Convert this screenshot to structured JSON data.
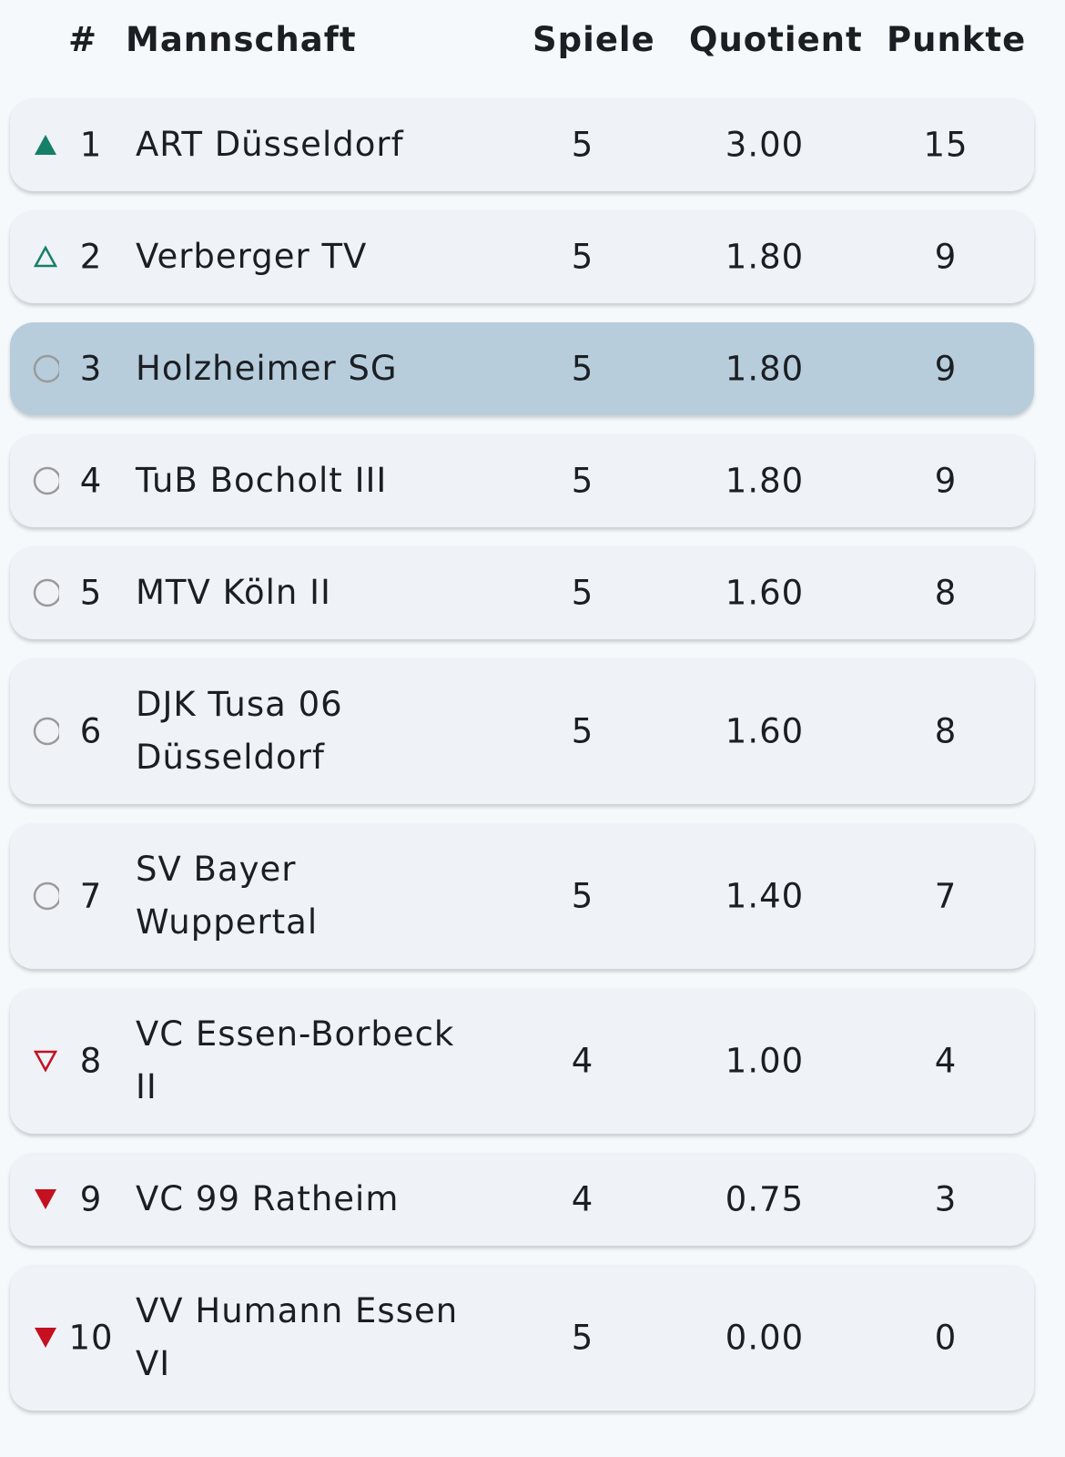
{
  "header": {
    "rank": "#",
    "team": "Mannschaft",
    "games": "Spiele",
    "ratio": "Quotient",
    "points": "Punkte"
  },
  "colors": {
    "up": "#157f68",
    "down": "#c4101f",
    "neutral": "#9a9a9a",
    "highlight": "#b7cddb"
  },
  "rows": [
    {
      "trend": "up-filled",
      "rank": "1",
      "name": [
        "ART Düsseldorf"
      ],
      "games": "5",
      "ratio": "3.00",
      "points": "15"
    },
    {
      "trend": "up-outline",
      "rank": "2",
      "name": [
        "Verberger TV"
      ],
      "games": "5",
      "ratio": "1.80",
      "points": "9"
    },
    {
      "trend": "neutral",
      "rank": "3",
      "name": [
        "Holzheimer SG"
      ],
      "games": "5",
      "ratio": "1.80",
      "points": "9",
      "highlighted": true
    },
    {
      "trend": "neutral",
      "rank": "4",
      "name": [
        "TuB Bocholt III"
      ],
      "games": "5",
      "ratio": "1.80",
      "points": "9"
    },
    {
      "trend": "neutral",
      "rank": "5",
      "name": [
        "MTV Köln II"
      ],
      "games": "5",
      "ratio": "1.60",
      "points": "8"
    },
    {
      "trend": "neutral",
      "rank": "6",
      "name": [
        "DJK Tusa 06",
        "Düsseldorf"
      ],
      "games": "5",
      "ratio": "1.60",
      "points": "8"
    },
    {
      "trend": "neutral",
      "rank": "7",
      "name": [
        "SV Bayer",
        "Wuppertal"
      ],
      "games": "5",
      "ratio": "1.40",
      "points": "7"
    },
    {
      "trend": "down-outline",
      "rank": "8",
      "name": [
        "VC Essen-Borbeck",
        "II"
      ],
      "games": "4",
      "ratio": "1.00",
      "points": "4"
    },
    {
      "trend": "down-filled",
      "rank": "9",
      "name": [
        "VC 99 Ratheim"
      ],
      "games": "4",
      "ratio": "0.75",
      "points": "3"
    },
    {
      "trend": "down-filled",
      "rank": "10",
      "name": [
        "VV Humann Essen",
        "VI"
      ],
      "games": "5",
      "ratio": "0.00",
      "points": "0"
    }
  ]
}
